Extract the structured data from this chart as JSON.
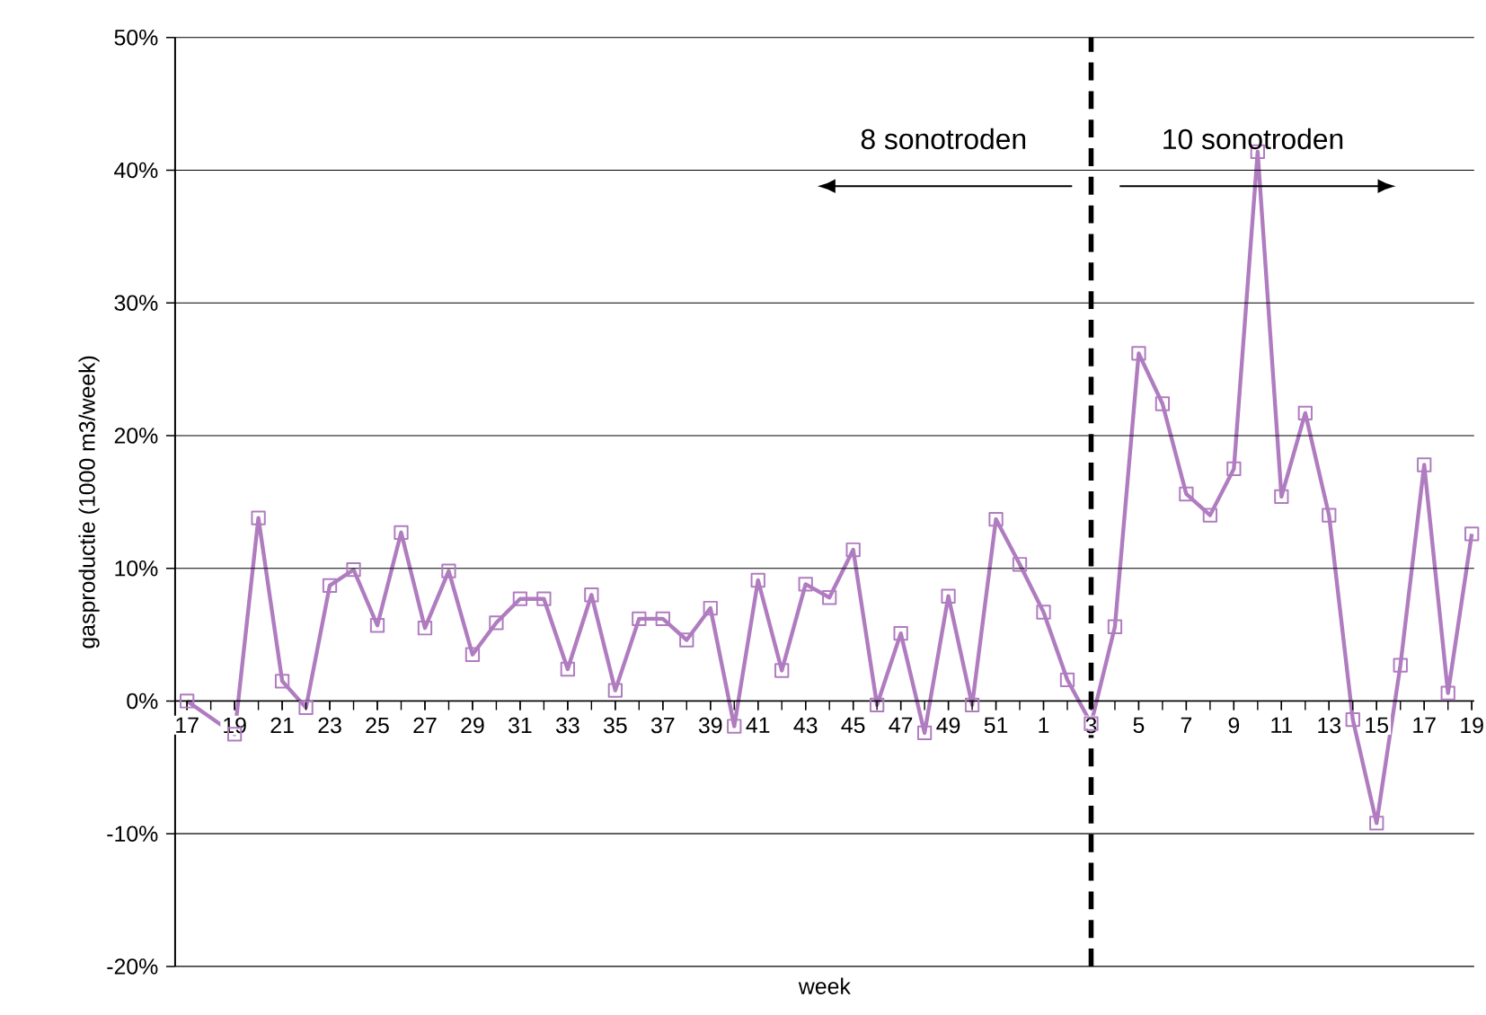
{
  "chart_data": {
    "type": "line",
    "xlabel": "week",
    "ylabel": "gasproductie (1000 m3/week)",
    "categories": [
      "17",
      null,
      "19",
      null,
      "21",
      null,
      "23",
      null,
      "25",
      null,
      "27",
      null,
      "29",
      null,
      "31",
      null,
      "33",
      null,
      "35",
      null,
      "37",
      null,
      "39",
      null,
      "41",
      null,
      "43",
      null,
      "45",
      null,
      "47",
      null,
      "49",
      null,
      "51",
      null,
      "1",
      null,
      "3",
      null,
      "5",
      null,
      "7",
      null,
      "9",
      null,
      "11",
      null,
      "13",
      null,
      "15",
      null,
      "17",
      null,
      "19"
    ],
    "series": [
      {
        "color": "#b07cc0",
        "values": [
          0,
          null,
          -2.5,
          13.8,
          1.5,
          -0.5,
          8.7,
          9.9,
          5.7,
          12.7,
          5.5,
          9.8,
          3.5,
          5.9,
          7.7,
          7.7,
          2.4,
          8.0,
          0.8,
          6.2,
          6.2,
          4.6,
          7.0,
          -1.9,
          9.1,
          2.3,
          8.8,
          7.8,
          11.4,
          -0.3,
          5.1,
          -2.4,
          7.9,
          -0.3,
          13.7,
          10.3,
          6.7,
          1.6,
          -1.7,
          5.6,
          26.2,
          22.4,
          15.6,
          14.0,
          17.5,
          41.4,
          15.4,
          21.7,
          14.0,
          -1.4,
          -9.2,
          2.7,
          17.8,
          0.6,
          12.6
        ]
      }
    ],
    "ylim": [
      -20,
      50
    ],
    "yticks": [
      {
        "value": -20,
        "label": "-20%"
      },
      {
        "value": -10,
        "label": "-10%"
      },
      {
        "value": 0,
        "label": "0%"
      },
      {
        "value": 10,
        "label": "10%"
      },
      {
        "value": 20,
        "label": "20%"
      },
      {
        "value": 30,
        "label": "30%"
      },
      {
        "value": 40,
        "label": "40%"
      },
      {
        "value": 50,
        "label": "50%"
      }
    ],
    "grid": "y",
    "marker": "square",
    "line_style": "solid",
    "ref_lines": [
      {
        "axis": "x",
        "value": "3",
        "color": "#000000",
        "line_style": "dashed"
      }
    ],
    "annotations": [
      "8 sonotroden",
      "10 sonotroden"
    ]
  }
}
